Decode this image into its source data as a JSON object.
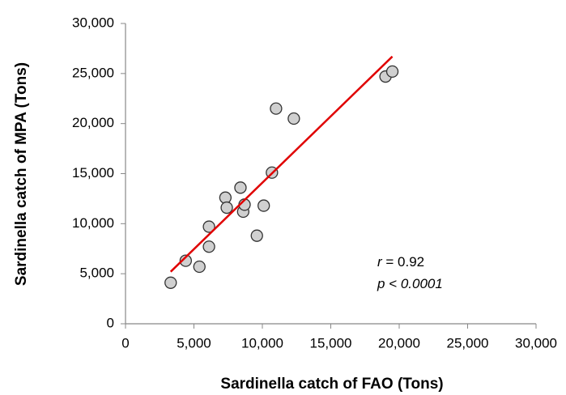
{
  "chart_data": {
    "type": "scatter",
    "x_label": "Sardinella catch of FAO (Tons)",
    "y_label": "Sardinella catch of MPA (Tons)",
    "x": [
      3300,
      4400,
      5400,
      6100,
      6100,
      7300,
      7400,
      8400,
      8600,
      8700,
      9600,
      10100,
      10700,
      11000,
      12300,
      19000,
      19500
    ],
    "y": [
      4100,
      6300,
      5700,
      7700,
      9700,
      12600,
      11600,
      13600,
      11200,
      11900,
      8800,
      11800,
      15100,
      21500,
      20500,
      24700,
      25200
    ],
    "color": "#d0d0d0",
    "fit": {
      "x": [
        3300,
        19500
      ],
      "y": [
        5200,
        26700
      ],
      "color": "#e00000"
    },
    "annotations": [
      [
        {
          "text": "r",
          "italic": true
        },
        {
          "text": " = 0.92",
          "italic": false
        }
      ],
      [
        {
          "text": "p < 0.0001",
          "italic": true
        }
      ]
    ],
    "xlim": [
      0,
      30000
    ],
    "ylim": [
      0,
      30000
    ],
    "xticks": [
      0,
      {
        "value": 5000,
        "label": "5,000"
      },
      {
        "value": 10000,
        "label": "10,000"
      },
      {
        "value": 15000,
        "label": "15,000"
      },
      {
        "value": 20000,
        "label": "20,000"
      },
      {
        "value": 25000,
        "label": "25,000"
      },
      {
        "value": 30000,
        "label": "30,000"
      }
    ],
    "yticks": [
      0,
      {
        "value": 5000,
        "label": "5,000"
      },
      {
        "value": 10000,
        "label": "10,000"
      },
      {
        "value": 15000,
        "label": "15,000"
      },
      {
        "value": 20000,
        "label": "20,000"
      },
      {
        "value": 25000,
        "label": "25,000"
      },
      {
        "value": 30000,
        "label": "30,000"
      }
    ]
  }
}
